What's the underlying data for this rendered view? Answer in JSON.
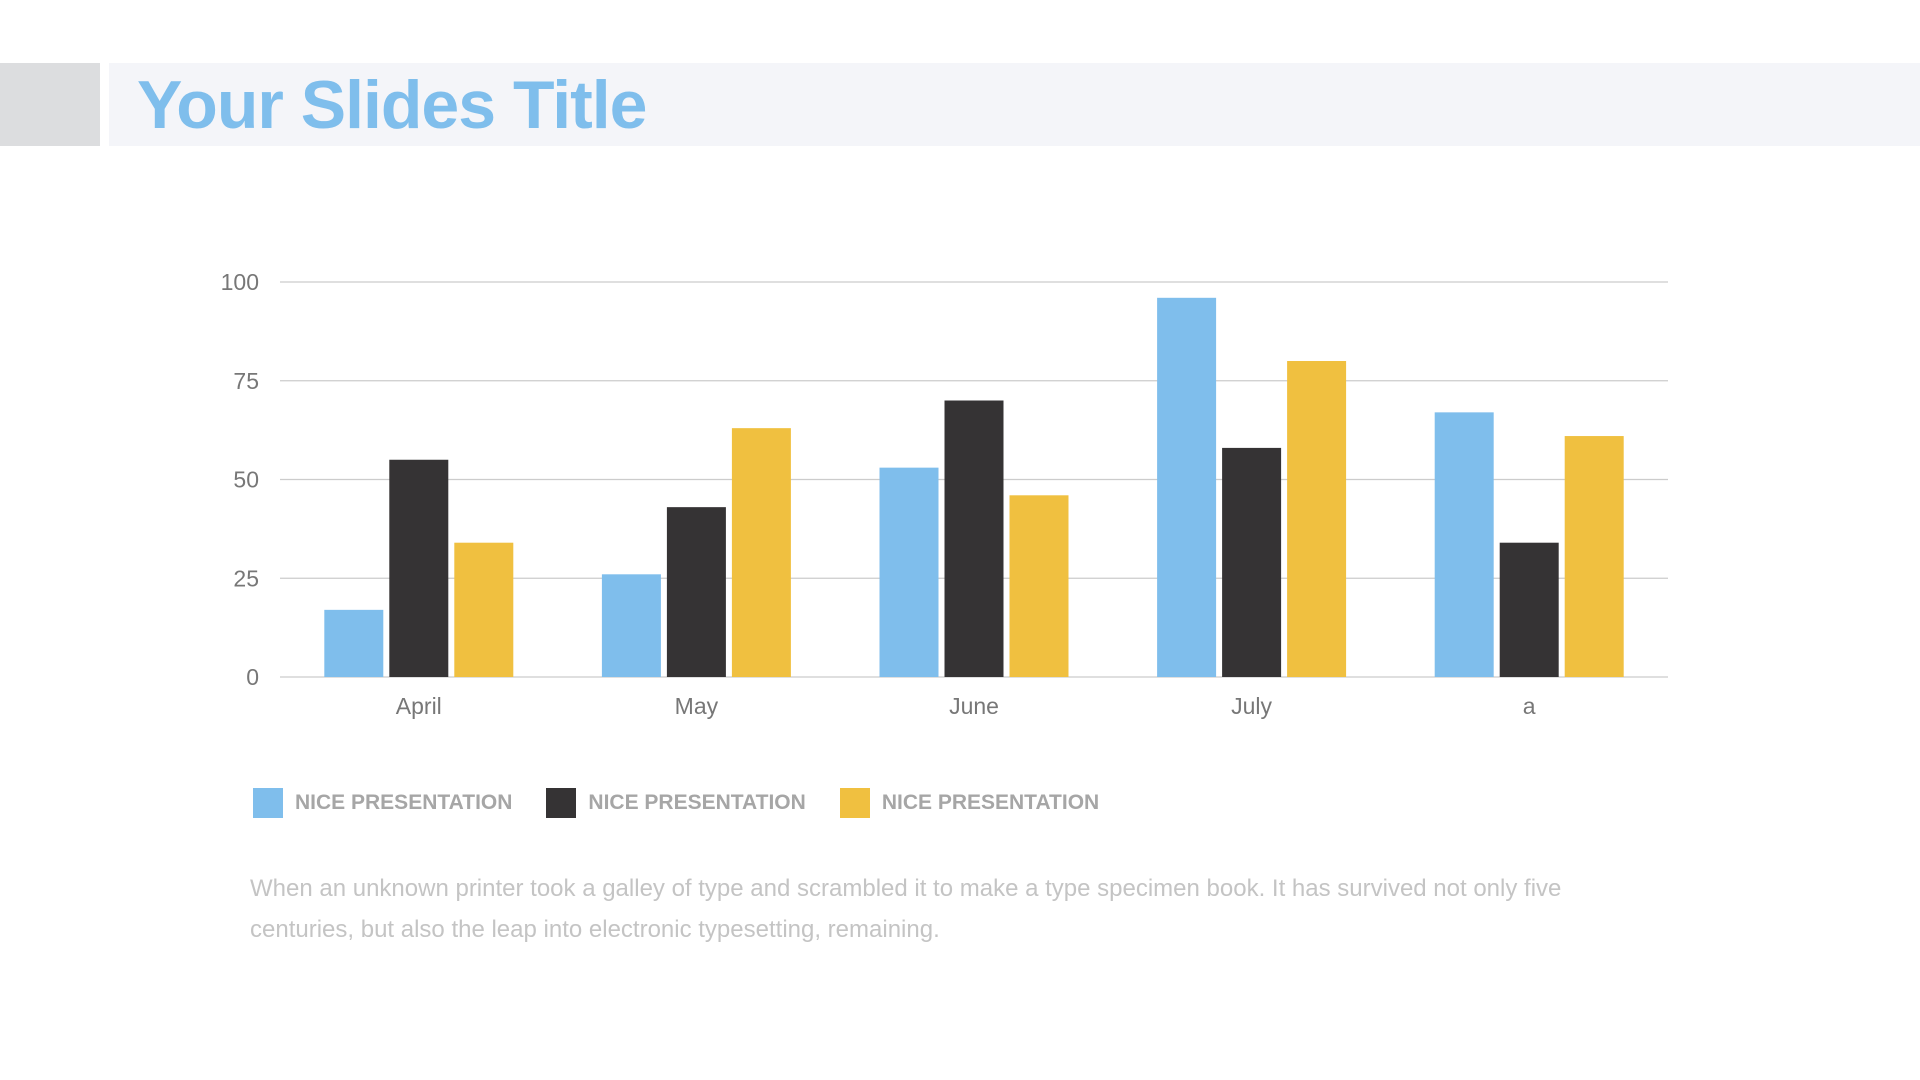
{
  "slide": {
    "title": "Your Slides Title",
    "caption": "When an unknown printer took a galley of type and scrambled it to make a type specimen book. It has survived not only five centuries, but also the leap into electronic typesetting, remaining."
  },
  "colors": {
    "title": "#7fbeec",
    "series_blue": "#7fbeec",
    "series_dark": "#353334",
    "series_yellow": "#f0c040",
    "grid": "#cccccc",
    "tick_text": "#777777"
  },
  "chart_data": {
    "type": "bar",
    "title": "",
    "xlabel": "",
    "ylabel": "",
    "categories": [
      "April",
      "May",
      "June",
      "July",
      "a"
    ],
    "ylim": [
      0,
      100
    ],
    "yticks": [
      0,
      25,
      50,
      75,
      100
    ],
    "grid": true,
    "legend_position": "bottom-left",
    "series": [
      {
        "name": "NICE PRESENTATION",
        "color": "#7fbeec",
        "values": [
          17,
          26,
          53,
          96,
          67
        ]
      },
      {
        "name": "NICE PRESENTATION",
        "color": "#353334",
        "values": [
          55,
          43,
          70,
          58,
          34
        ]
      },
      {
        "name": "NICE PRESENTATION",
        "color": "#f0c040",
        "values": [
          34,
          63,
          46,
          80,
          61
        ]
      }
    ]
  }
}
